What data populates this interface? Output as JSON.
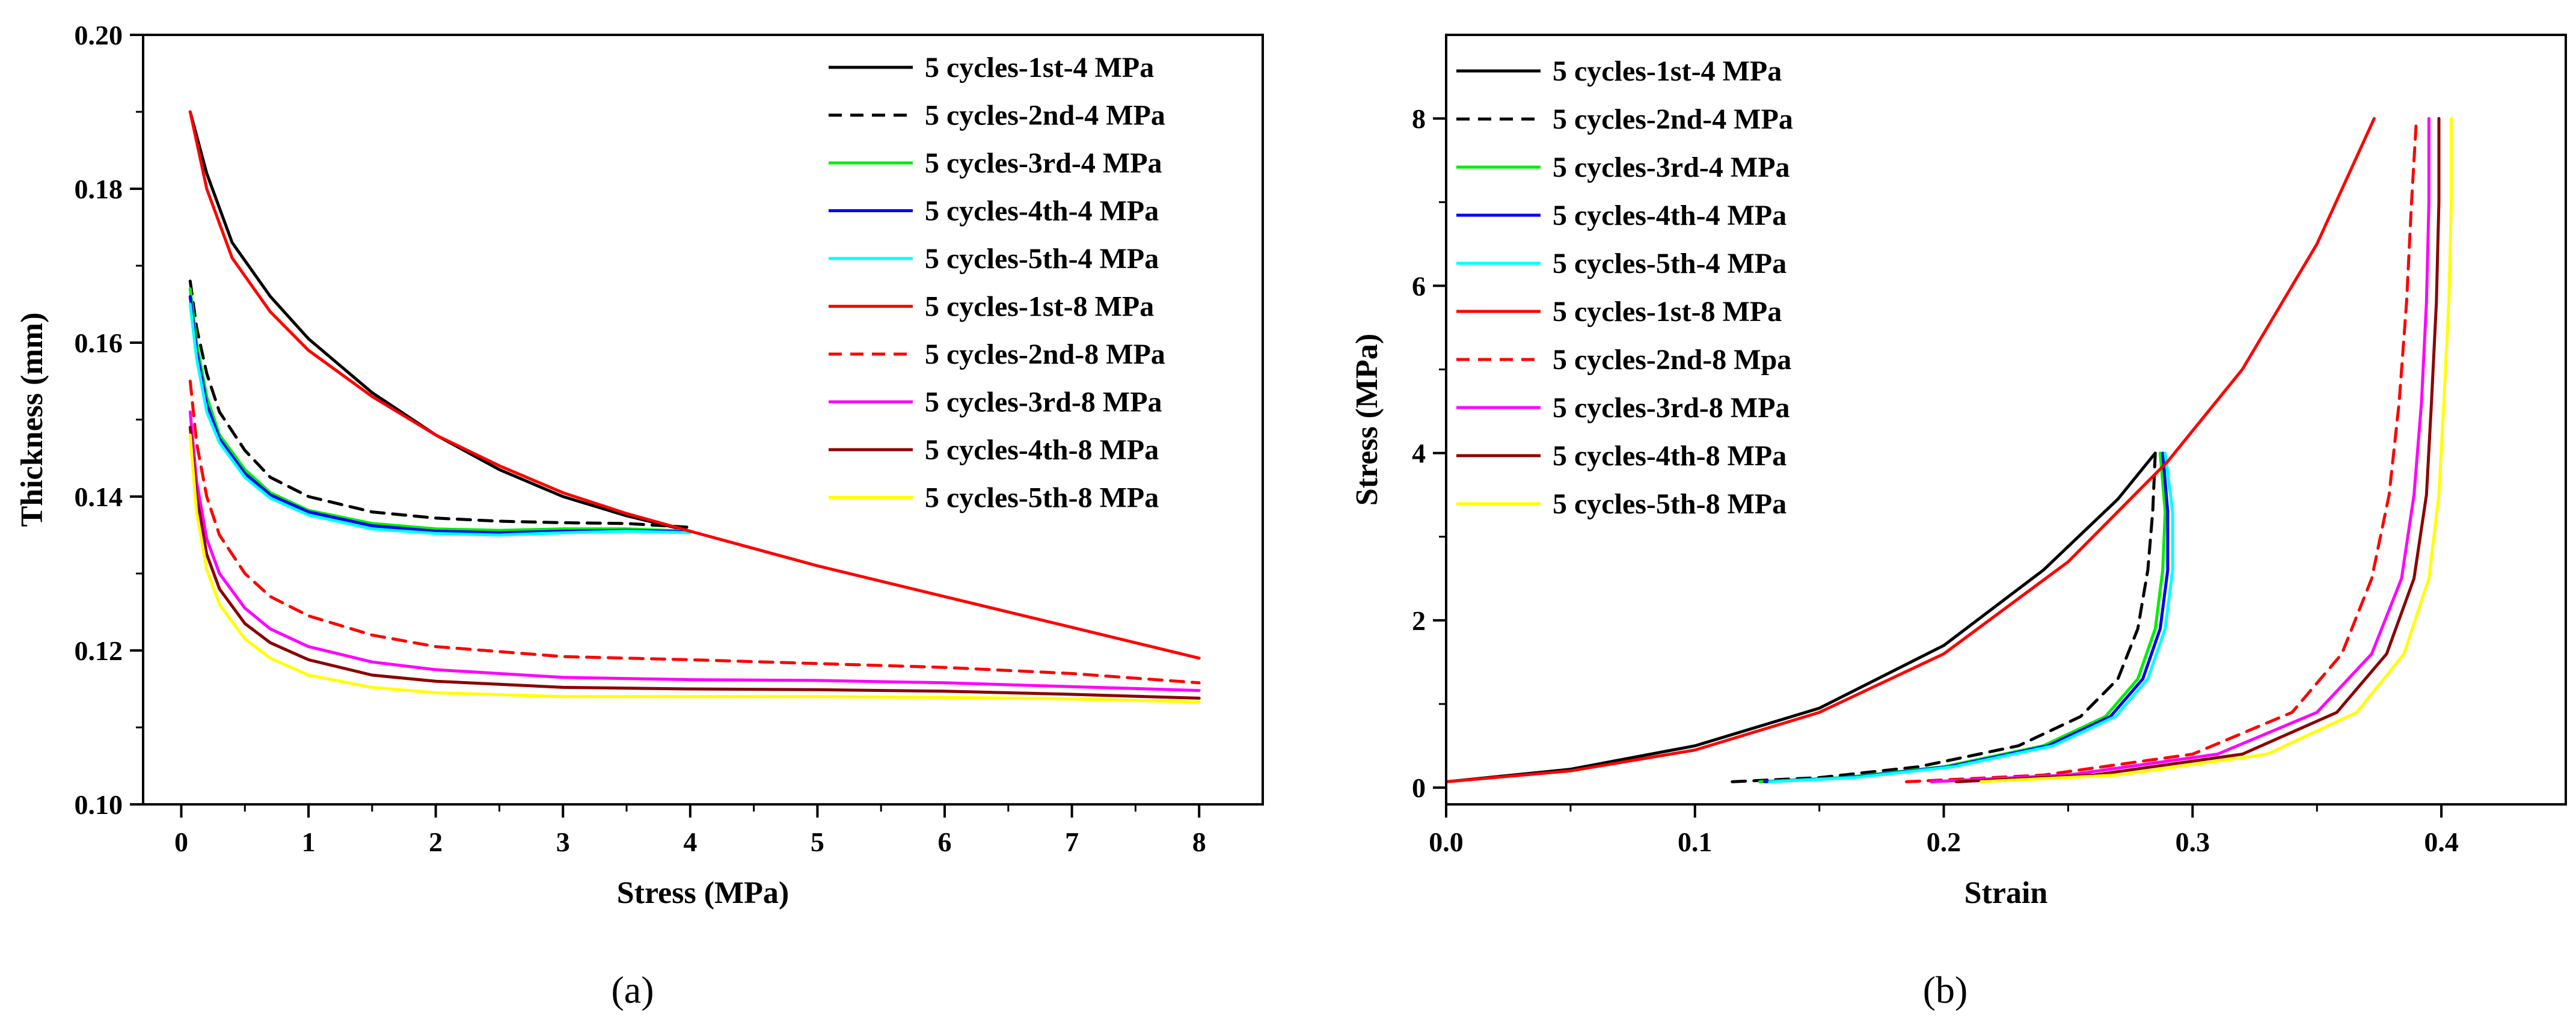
{
  "chart_data": [
    {
      "type": "line",
      "panel_label": "(a)",
      "xlabel": "Stress (MPa)",
      "ylabel": "Thickness (mm)",
      "xlim": [
        -0.3,
        8.5
      ],
      "ylim": [
        0.1,
        0.2
      ],
      "xticks": [
        0,
        1,
        2,
        3,
        4,
        5,
        6,
        7,
        8
      ],
      "yticks": [
        0.1,
        0.12,
        0.14,
        0.16,
        0.18,
        0.2
      ],
      "ytick_decimals": 2,
      "legend_position": "top-right",
      "series": [
        {
          "name": "5 cycles-1st-4 MPa",
          "color": "#000000",
          "dash": "solid",
          "x": [
            0.07,
            0.2,
            0.4,
            0.7,
            1.0,
            1.5,
            2.0,
            2.5,
            3.0,
            3.5,
            4.0
          ],
          "y": [
            0.19,
            0.182,
            0.173,
            0.166,
            0.1605,
            0.1535,
            0.148,
            0.1435,
            0.14,
            0.1375,
            0.1355
          ]
        },
        {
          "name": "5 cycles-2nd-4 MPa",
          "color": "#000000",
          "dash": "dashed",
          "x": [
            0.07,
            0.12,
            0.2,
            0.3,
            0.5,
            0.7,
            1.0,
            1.5,
            2.0,
            2.5,
            3.0,
            3.5,
            4.0
          ],
          "y": [
            0.168,
            0.162,
            0.156,
            0.151,
            0.146,
            0.1425,
            0.14,
            0.138,
            0.1372,
            0.1368,
            0.1366,
            0.1365,
            0.136
          ]
        },
        {
          "name": "5 cycles-3rd-4 MPa",
          "color": "#00ee00",
          "dash": "solid",
          "x": [
            0.07,
            0.12,
            0.2,
            0.3,
            0.5,
            0.7,
            1.0,
            1.5,
            2.0,
            2.5,
            3.0,
            3.5,
            4.0
          ],
          "y": [
            0.167,
            0.16,
            0.153,
            0.148,
            0.1435,
            0.1405,
            0.1382,
            0.1365,
            0.1358,
            0.1356,
            0.1358,
            0.1358,
            0.1355
          ]
        },
        {
          "name": "5 cycles-4th-4 MPa",
          "color": "#0000ff",
          "dash": "solid",
          "x": [
            0.07,
            0.12,
            0.2,
            0.3,
            0.5,
            0.7,
            1.0,
            1.5,
            2.0,
            2.5,
            3.0,
            3.5,
            4.0
          ],
          "y": [
            0.166,
            0.159,
            0.152,
            0.1475,
            0.143,
            0.1402,
            0.138,
            0.1362,
            0.1355,
            0.1353,
            0.1355,
            0.1356,
            0.1354
          ]
        },
        {
          "name": "5 cycles-5th-4 MPa",
          "color": "#00ffff",
          "dash": "solid",
          "x": [
            0.07,
            0.12,
            0.2,
            0.3,
            0.5,
            0.7,
            1.0,
            1.5,
            2.0,
            2.5,
            3.0,
            3.5,
            4.0
          ],
          "y": [
            0.165,
            0.158,
            0.151,
            0.147,
            0.1425,
            0.1398,
            0.1376,
            0.1358,
            0.1352,
            0.135,
            0.1353,
            0.1355,
            0.1353
          ]
        },
        {
          "name": "5 cycles-1st-8 MPa",
          "color": "#ff0000",
          "dash": "solid",
          "x": [
            0.07,
            0.2,
            0.4,
            0.7,
            1.0,
            1.5,
            2.0,
            2.5,
            3.0,
            3.5,
            4.0,
            5.0,
            6.0,
            7.0,
            8.0
          ],
          "y": [
            0.19,
            0.18,
            0.171,
            0.164,
            0.159,
            0.153,
            0.148,
            0.144,
            0.1405,
            0.1378,
            0.1355,
            0.131,
            0.127,
            0.123,
            0.119
          ]
        },
        {
          "name": "5 cycles-2nd-8 MPa",
          "color": "#ff0000",
          "dash": "dashed",
          "x": [
            0.07,
            0.12,
            0.2,
            0.3,
            0.5,
            0.7,
            1.0,
            1.5,
            2.0,
            3.0,
            4.0,
            5.0,
            6.0,
            7.0,
            8.0
          ],
          "y": [
            0.155,
            0.147,
            0.14,
            0.135,
            0.13,
            0.127,
            0.1245,
            0.122,
            0.1205,
            0.1192,
            0.1188,
            0.1183,
            0.1178,
            0.117,
            0.1158
          ]
        },
        {
          "name": "5 cycles-3rd-8 MPa",
          "color": "#ff00ff",
          "dash": "solid",
          "x": [
            0.07,
            0.12,
            0.2,
            0.3,
            0.5,
            0.7,
            1.0,
            1.5,
            2.0,
            3.0,
            4.0,
            5.0,
            6.0,
            7.0,
            8.0
          ],
          "y": [
            0.151,
            0.142,
            0.1345,
            0.13,
            0.1255,
            0.1228,
            0.1205,
            0.1185,
            0.1175,
            0.1165,
            0.1162,
            0.1161,
            0.1158,
            0.1153,
            0.1148
          ]
        },
        {
          "name": "5 cycles-4th-8 MPa",
          "color": "#8b0000",
          "dash": "solid",
          "x": [
            0.07,
            0.12,
            0.2,
            0.3,
            0.5,
            0.7,
            1.0,
            1.5,
            2.0,
            3.0,
            4.0,
            5.0,
            6.0,
            7.0,
            8.0
          ],
          "y": [
            0.149,
            0.14,
            0.1325,
            0.128,
            0.1235,
            0.121,
            0.1188,
            0.1168,
            0.116,
            0.1152,
            0.115,
            0.1149,
            0.1147,
            0.1143,
            0.1138
          ]
        },
        {
          "name": "5 cycles-5th-8 MPa",
          "color": "#ffff00",
          "dash": "solid",
          "x": [
            0.07,
            0.12,
            0.2,
            0.3,
            0.5,
            0.7,
            1.0,
            1.5,
            2.0,
            3.0,
            4.0,
            5.0,
            6.0,
            7.0,
            8.0
          ],
          "y": [
            0.148,
            0.138,
            0.1305,
            0.126,
            0.1215,
            0.119,
            0.1168,
            0.1152,
            0.1145,
            0.114,
            0.114,
            0.114,
            0.1139,
            0.1137,
            0.1133
          ]
        }
      ]
    },
    {
      "type": "line",
      "panel_label": "(b)",
      "xlabel": "Strain",
      "ylabel": "Stress (MPa)",
      "xlim": [
        0.0,
        0.45
      ],
      "ylim": [
        -0.2,
        9.0
      ],
      "xticks": [
        0.0,
        0.1,
        0.2,
        0.3,
        0.4
      ],
      "xtick_decimals": 1,
      "yticks": [
        0,
        2,
        4,
        6,
        8
      ],
      "legend_position": "top-left",
      "series": [
        {
          "name": "5 cycles-1st-4 MPa",
          "color": "#000000",
          "dash": "solid",
          "x": [
            0.0,
            0.05,
            0.1,
            0.15,
            0.2,
            0.24,
            0.27,
            0.285
          ],
          "y": [
            0.07,
            0.22,
            0.5,
            0.95,
            1.7,
            2.6,
            3.45,
            4.0
          ]
        },
        {
          "name": "5 cycles-2nd-4 MPa",
          "color": "#000000",
          "dash": "dashed",
          "x": [
            0.115,
            0.15,
            0.19,
            0.23,
            0.255,
            0.27,
            0.278,
            0.282,
            0.284,
            0.285
          ],
          "y": [
            0.07,
            0.12,
            0.25,
            0.5,
            0.85,
            1.3,
            1.9,
            2.6,
            3.3,
            4.0
          ]
        },
        {
          "name": "5 cycles-3rd-4 MPa",
          "color": "#00ee00",
          "dash": "solid",
          "x": [
            0.126,
            0.16,
            0.2,
            0.24,
            0.265,
            0.278,
            0.285,
            0.288,
            0.289,
            0.287
          ],
          "y": [
            0.07,
            0.12,
            0.25,
            0.5,
            0.85,
            1.3,
            1.9,
            2.6,
            3.3,
            4.0
          ]
        },
        {
          "name": "5 cycles-4th-4 MPa",
          "color": "#0000ff",
          "dash": "solid",
          "x": [
            0.128,
            0.162,
            0.202,
            0.242,
            0.267,
            0.28,
            0.287,
            0.29,
            0.29,
            0.288
          ],
          "y": [
            0.07,
            0.12,
            0.25,
            0.5,
            0.85,
            1.3,
            1.9,
            2.6,
            3.3,
            4.0
          ]
        },
        {
          "name": "5 cycles-5th-4 MPa",
          "color": "#00ffff",
          "dash": "solid",
          "x": [
            0.13,
            0.164,
            0.204,
            0.244,
            0.269,
            0.282,
            0.289,
            0.292,
            0.292,
            0.289
          ],
          "y": [
            0.07,
            0.12,
            0.25,
            0.5,
            0.85,
            1.3,
            1.9,
            2.6,
            3.3,
            4.0
          ]
        },
        {
          "name": "5 cycles-1st-8 MPa",
          "color": "#ff0000",
          "dash": "solid",
          "x": [
            0.0,
            0.05,
            0.1,
            0.15,
            0.2,
            0.25,
            0.29,
            0.32,
            0.35,
            0.373
          ],
          "y": [
            0.07,
            0.2,
            0.45,
            0.9,
            1.6,
            2.7,
            3.9,
            5.0,
            6.5,
            8.0
          ]
        },
        {
          "name": "5 cycles-2nd-8 Mpa",
          "color": "#ff0000",
          "dash": "dashed",
          "x": [
            0.185,
            0.24,
            0.3,
            0.34,
            0.36,
            0.372,
            0.379,
            0.383,
            0.386,
            0.388,
            0.39
          ],
          "y": [
            0.07,
            0.15,
            0.4,
            0.9,
            1.6,
            2.5,
            3.5,
            4.6,
            5.8,
            7.0,
            8.0
          ]
        },
        {
          "name": "5 cycles-3rd-8 MPa",
          "color": "#ff00ff",
          "dash": "solid",
          "x": [
            0.195,
            0.25,
            0.31,
            0.35,
            0.372,
            0.384,
            0.389,
            0.392,
            0.394,
            0.395,
            0.395
          ],
          "y": [
            0.07,
            0.15,
            0.4,
            0.9,
            1.6,
            2.5,
            3.5,
            4.6,
            5.8,
            7.0,
            8.0
          ]
        },
        {
          "name": "5 cycles-4th-8 MPa",
          "color": "#8b0000",
          "dash": "solid",
          "x": [
            0.205,
            0.26,
            0.32,
            0.358,
            0.378,
            0.389,
            0.394,
            0.396,
            0.398,
            0.399,
            0.399
          ],
          "y": [
            0.07,
            0.15,
            0.4,
            0.9,
            1.6,
            2.5,
            3.5,
            4.6,
            5.8,
            7.0,
            8.0
          ]
        },
        {
          "name": "5 cycles-5th-8 MPa",
          "color": "#ffff00",
          "dash": "solid",
          "x": [
            0.215,
            0.27,
            0.33,
            0.366,
            0.385,
            0.395,
            0.399,
            0.401,
            0.403,
            0.404,
            0.404
          ],
          "y": [
            0.07,
            0.15,
            0.4,
            0.9,
            1.6,
            2.5,
            3.5,
            4.6,
            5.8,
            7.0,
            8.0
          ]
        }
      ]
    }
  ]
}
